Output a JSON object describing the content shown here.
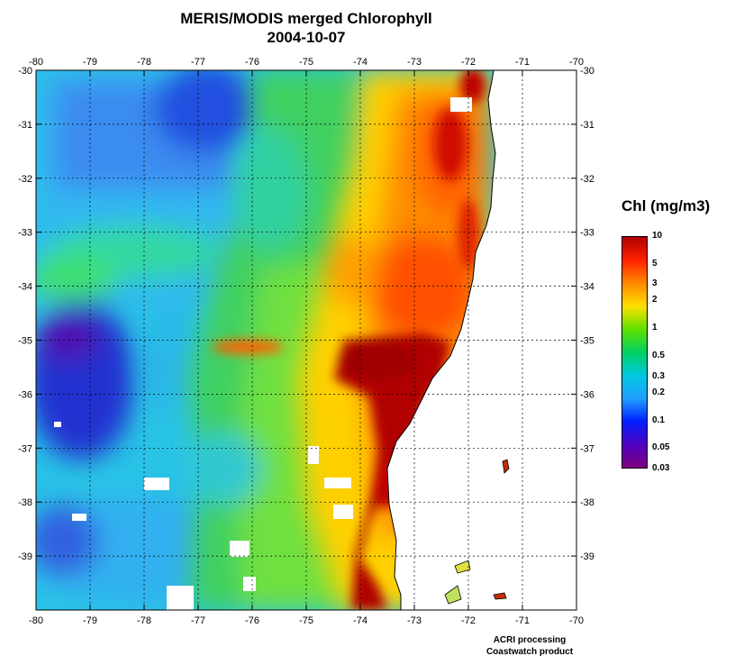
{
  "title": {
    "line1": "MERIS/MODIS merged Chlorophyll",
    "line2": "2004-10-07"
  },
  "map": {
    "lon_range": [
      -80,
      -70
    ],
    "lat_range": [
      -40,
      -30
    ],
    "lon_ticks": [
      "-80",
      "-79",
      "-78",
      "-77",
      "-76",
      "-75",
      "-74",
      "-73",
      "-72",
      "-71",
      "-70"
    ],
    "lat_ticks": [
      "-30",
      "-31",
      "-32",
      "-33",
      "-34",
      "-35",
      "-36",
      "-37",
      "-38",
      "-39"
    ],
    "grid": "dotted",
    "land_color": "#ffffff",
    "no_data_color": "#ffffff"
  },
  "legend": {
    "title": "Chl (mg/m3)",
    "scale": "log",
    "range": [
      0.03,
      10
    ],
    "labels": [
      {
        "text": "10",
        "value": 10
      },
      {
        "text": "5",
        "value": 5
      },
      {
        "text": "3",
        "value": 3
      },
      {
        "text": "2",
        "value": 2
      },
      {
        "text": "1",
        "value": 1
      },
      {
        "text": "0.5",
        "value": 0.5
      },
      {
        "text": "0.3",
        "value": 0.3
      },
      {
        "text": "0.2",
        "value": 0.2
      },
      {
        "text": "0.1",
        "value": 0.1
      },
      {
        "text": "0.05",
        "value": 0.05
      },
      {
        "text": "0.03",
        "value": 0.03
      }
    ],
    "colors": [
      "#b00000",
      "#ff2000",
      "#ff8800",
      "#ffe000",
      "#60e000",
      "#00d060",
      "#00c8e0",
      "#20a0ff",
      "#0020ff",
      "#5000c0",
      "#800080"
    ]
  },
  "credits": {
    "line1": "ACRI processing",
    "line2": "Coastwatch product"
  }
}
